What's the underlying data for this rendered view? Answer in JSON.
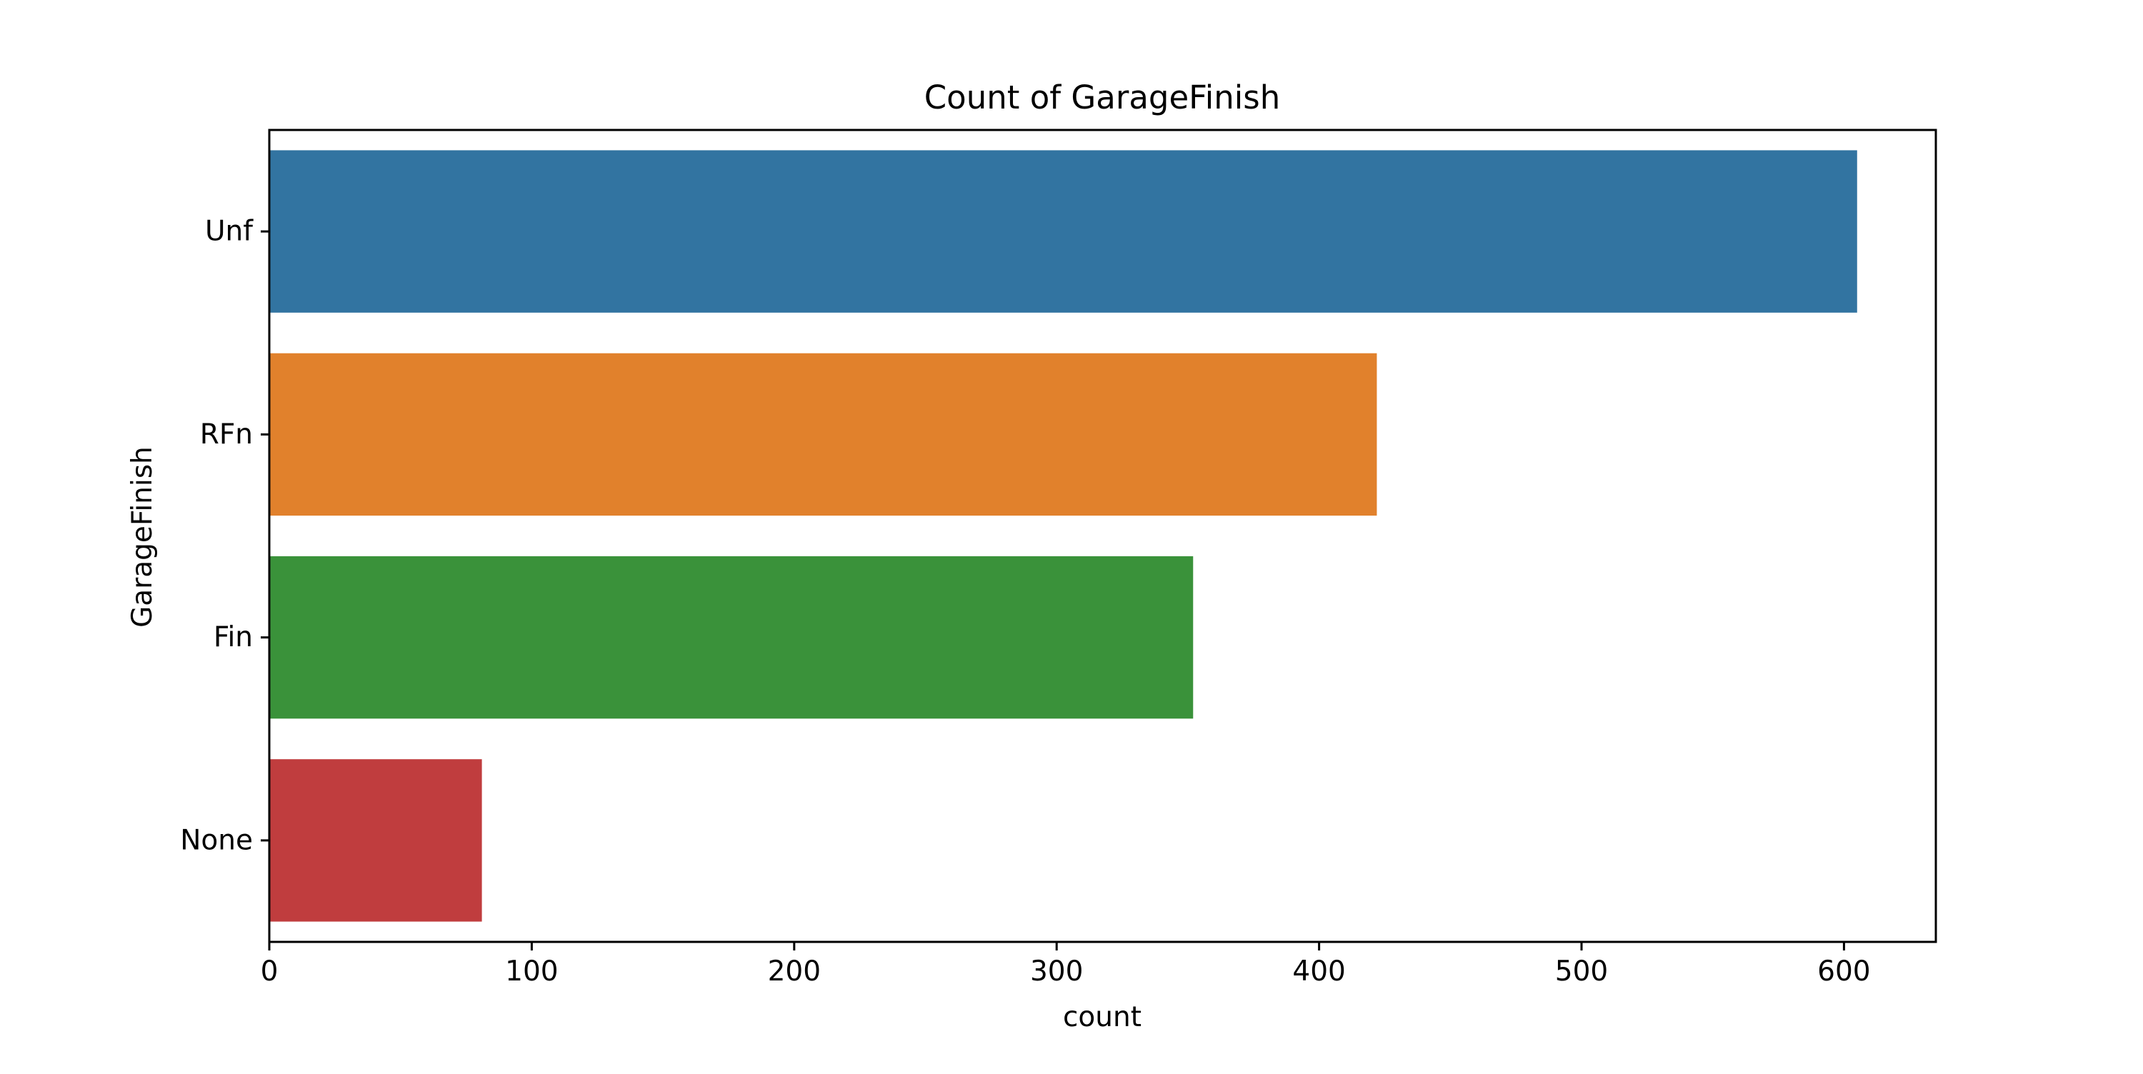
{
  "chart_data": {
    "type": "bar",
    "orientation": "horizontal",
    "title": "Count of GarageFinish",
    "xlabel": "count",
    "ylabel": "GarageFinish",
    "categories": [
      "Unf",
      "RFn",
      "Fin",
      "None"
    ],
    "values": [
      605,
      422,
      352,
      81
    ],
    "colors": [
      "#3274a1",
      "#e1812c",
      "#3a923a",
      "#c03d3e"
    ],
    "xlim": [
      0,
      635
    ],
    "xticks": [
      0,
      100,
      200,
      300,
      400,
      500,
      600
    ],
    "grid": false,
    "legend": "none"
  }
}
